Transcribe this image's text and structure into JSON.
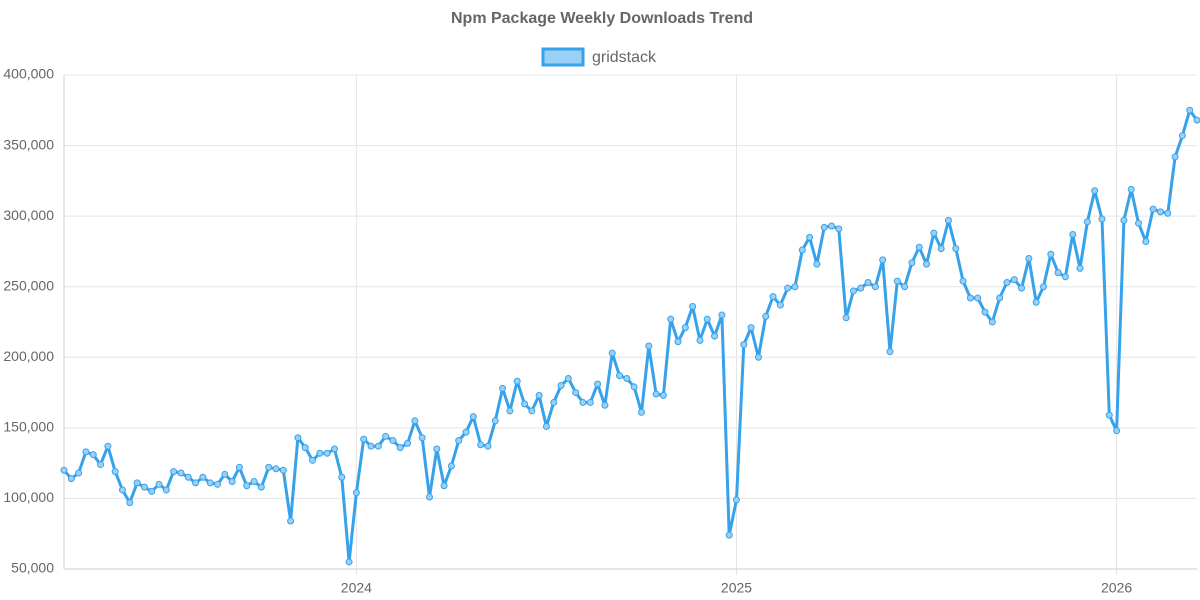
{
  "chart_data": {
    "type": "line",
    "title": "Npm Package Weekly Downloads Trend",
    "categories": [
      null,
      null,
      null,
      null,
      null,
      null,
      null,
      null,
      null,
      null,
      null,
      null,
      null,
      null,
      null,
      null,
      null,
      null,
      null,
      null,
      null,
      null,
      null,
      null,
      null,
      null,
      null,
      null,
      null,
      null,
      null,
      null,
      null,
      null,
      null,
      null,
      null,
      null,
      null,
      null,
      "2024",
      null,
      null,
      null,
      null,
      null,
      null,
      null,
      null,
      null,
      null,
      null,
      null,
      null,
      null,
      null,
      null,
      null,
      null,
      null,
      null,
      null,
      null,
      null,
      null,
      null,
      null,
      null,
      null,
      null,
      null,
      null,
      null,
      null,
      null,
      null,
      null,
      null,
      null,
      null,
      null,
      null,
      null,
      null,
      null,
      null,
      null,
      null,
      null,
      null,
      null,
      null,
      "2025",
      null,
      null,
      null,
      null,
      null,
      null,
      null,
      null,
      null,
      null,
      null,
      null,
      null,
      null,
      null,
      null,
      null,
      null,
      null,
      null,
      null,
      null,
      null,
      null,
      null,
      null,
      null,
      null,
      null,
      null,
      null,
      null,
      null,
      null,
      null,
      null,
      null,
      null,
      null,
      null,
      null,
      null,
      null,
      null,
      null,
      null,
      null,
      null,
      null,
      null,
      null,
      "2026",
      null,
      null,
      null,
      null,
      null,
      null,
      null,
      null,
      null,
      null,
      null
    ],
    "series": [
      {
        "name": "gridstack",
        "color": "#36a2eb",
        "fill": "#9ad0f5",
        "values": [
          120000,
          114000,
          118000,
          133000,
          131000,
          124000,
          137000,
          119000,
          106000,
          97000,
          111000,
          108000,
          105000,
          110000,
          106000,
          119000,
          118000,
          115000,
          111000,
          115000,
          111000,
          110000,
          117000,
          112000,
          122000,
          109000,
          112000,
          108000,
          122000,
          121000,
          120000,
          84000,
          143000,
          136000,
          127000,
          132000,
          132000,
          135000,
          115000,
          55000,
          104000,
          142000,
          137000,
          137000,
          144000,
          141000,
          136000,
          139000,
          155000,
          143000,
          101000,
          135000,
          109000,
          123000,
          141000,
          147000,
          158000,
          138000,
          137000,
          155000,
          178000,
          162000,
          183000,
          167000,
          162000,
          173000,
          151000,
          168000,
          180000,
          185000,
          175000,
          168000,
          168000,
          181000,
          166000,
          203000,
          187000,
          185000,
          179000,
          161000,
          208000,
          174000,
          173000,
          227000,
          211000,
          221000,
          236000,
          212000,
          227000,
          215000,
          230000,
          74000,
          99000,
          209000,
          221000,
          200000,
          229000,
          243000,
          237000,
          249000,
          250000,
          276000,
          285000,
          266000,
          292000,
          293000,
          291000,
          228000,
          247000,
          249000,
          253000,
          250000,
          269000,
          204000,
          254000,
          250000,
          267000,
          278000,
          266000,
          288000,
          277000,
          297000,
          277000,
          254000,
          242000,
          242000,
          232000,
          225000,
          242000,
          253000,
          255000,
          249000,
          270000,
          239000,
          250000,
          273000,
          260000,
          257000,
          287000,
          263000,
          296000,
          318000,
          298000,
          159000,
          148000,
          297000,
          319000,
          295000,
          282000,
          305000,
          303000,
          302000,
          342000,
          357000,
          375000,
          368000
        ]
      }
    ],
    "ylim": [
      50000,
      400000
    ],
    "yticks": [
      {
        "value": 50000,
        "label": "50,000"
      },
      {
        "value": 100000,
        "label": "100,000"
      },
      {
        "value": 150000,
        "label": "150,000"
      },
      {
        "value": 200000,
        "label": "200,000"
      },
      {
        "value": 250000,
        "label": "250,000"
      },
      {
        "value": 300000,
        "label": "300,000"
      },
      {
        "value": 350000,
        "label": "350,000"
      },
      {
        "value": 400000,
        "label": "400,000"
      }
    ],
    "grid": true,
    "legend": "top"
  }
}
